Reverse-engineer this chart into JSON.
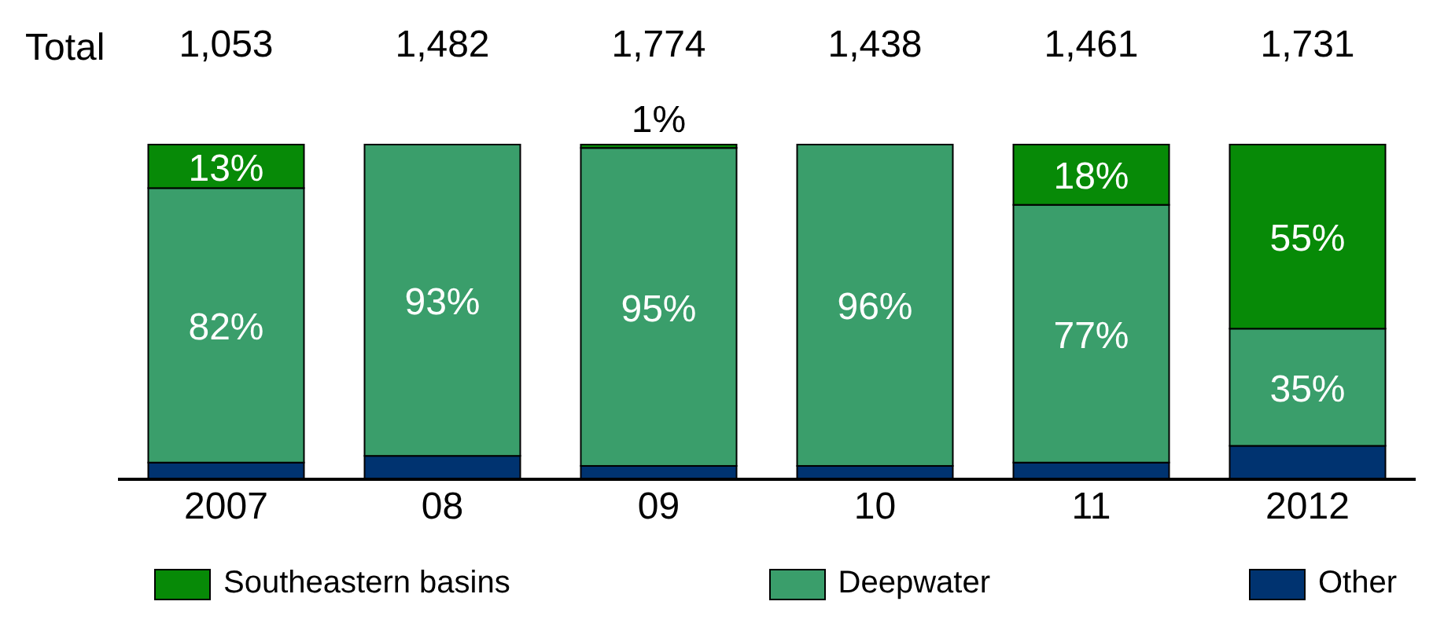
{
  "chart_data": {
    "type": "bar",
    "stacked": true,
    "categories": [
      "2007",
      "08",
      "09",
      "10",
      "11",
      "2012"
    ],
    "series": [
      {
        "name": "Other",
        "color": "#003370",
        "values": [
          5,
          7,
          4,
          4,
          5,
          10
        ]
      },
      {
        "name": "Deepwater",
        "color": "#3a9e6b",
        "values": [
          82,
          93,
          95,
          96,
          77,
          35
        ],
        "value_labels": [
          "82%",
          "93%",
          "95%",
          "96%",
          "77%",
          "35%"
        ]
      },
      {
        "name": "Southeastern basins",
        "color": "#078a07",
        "values": [
          13,
          0,
          1,
          0,
          18,
          55
        ],
        "value_labels": [
          "13%",
          null,
          "1%",
          null,
          "18%",
          "55%"
        ]
      }
    ],
    "ylim": [
      0,
      100
    ],
    "tick_labels": "x",
    "annotations": [
      "Total",
      "1,053",
      "1,482",
      "1,774",
      "1,438",
      "1,461",
      "1,731"
    ],
    "legend": "bottom"
  }
}
